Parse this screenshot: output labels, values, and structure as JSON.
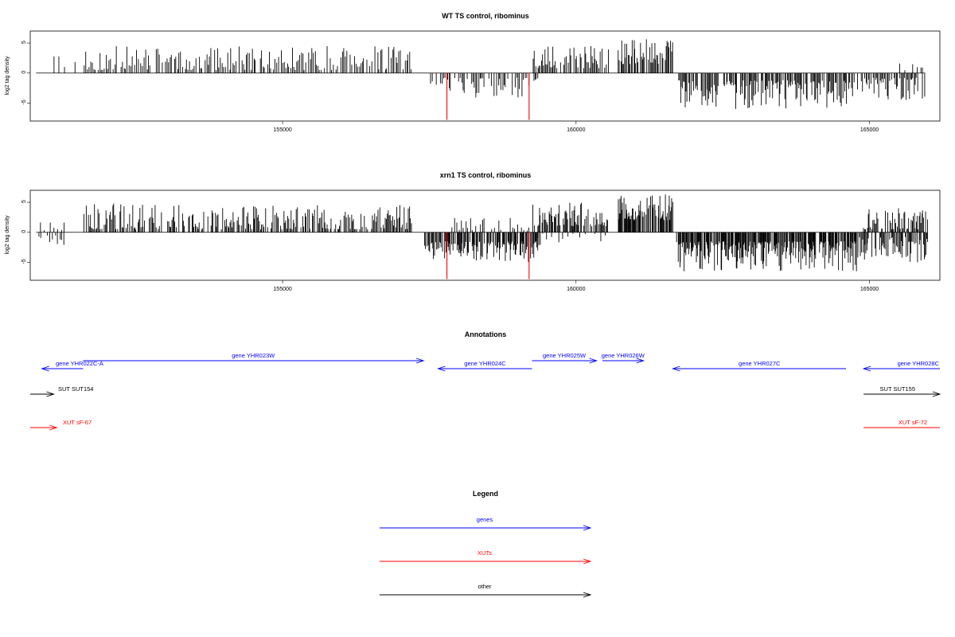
{
  "chart_data": [
    {
      "type": "bar",
      "title": "WT TS control, ribominus",
      "ylabel": "log2 tag density",
      "xlim": [
        150700,
        166200
      ],
      "ylim": [
        -8,
        7
      ],
      "yticks": [
        -5,
        0,
        5
      ],
      "xticks": [
        155000,
        160000,
        165000
      ],
      "xtick_labels": [
        "155000",
        "160000",
        "165000"
      ],
      "colors": {
        "normal": "#000000",
        "highlight": "#ff0000"
      },
      "highlight_bars": [
        {
          "x": 157800,
          "value": -7.8
        },
        {
          "x": 159200,
          "value": -7.8
        }
      ],
      "segments": [
        {
          "start": 150800,
          "end": 151000,
          "strand": "none",
          "min": 0,
          "max": 0
        },
        {
          "start": 151000,
          "end": 151500,
          "strand": "+",
          "min": 1.0,
          "max": 3.2,
          "step": 90,
          "seed": 3
        },
        {
          "start": 151600,
          "end": 157200,
          "strand": "+",
          "min": 0.5,
          "max": 4.5,
          "step": 26,
          "seed": 11
        },
        {
          "start": 157500,
          "end": 159350,
          "strand": "-",
          "min": 0.8,
          "max": 4.2,
          "step": 24,
          "seed": 17
        },
        {
          "start": 159250,
          "end": 160550,
          "strand": "+",
          "min": 0.8,
          "max": 4.8,
          "step": 20,
          "seed": 23
        },
        {
          "start": 160700,
          "end": 161650,
          "strand": "+",
          "min": 1.5,
          "max": 5.8,
          "step": 16,
          "seed": 29
        },
        {
          "start": 161700,
          "end": 164800,
          "strand": "-",
          "min": 1.2,
          "max": 6.0,
          "step": 16,
          "seed": 31
        },
        {
          "start": 164800,
          "end": 165950,
          "strand": "-",
          "min": 0.8,
          "max": 4.8,
          "step": 20,
          "seed": 37
        },
        {
          "start": 165500,
          "end": 165950,
          "strand": "+",
          "min": 0.3,
          "max": 1.6,
          "step": 60,
          "seed": 41
        }
      ]
    },
    {
      "type": "bar",
      "title": "xrn1 TS control, ribominus",
      "ylabel": "log2 tag density",
      "xlim": [
        150700,
        166200
      ],
      "ylim": [
        -8,
        7
      ],
      "yticks": [
        -5,
        0,
        5
      ],
      "xticks": [
        155000,
        160000,
        165000
      ],
      "xtick_labels": [
        "155000",
        "160000",
        "165000"
      ],
      "colors": {
        "normal": "#000000",
        "highlight": "#ff0000"
      },
      "highlight_bars": [
        {
          "x": 157800,
          "value": -7.8
        },
        {
          "x": 159200,
          "value": -7.8
        }
      ],
      "segments": [
        {
          "start": 150800,
          "end": 151300,
          "strand": "-",
          "min": 0.5,
          "max": 2.8,
          "step": 40,
          "seed": 5
        },
        {
          "start": 150800,
          "end": 151300,
          "strand": "+",
          "min": 0.3,
          "max": 1.8,
          "step": 60,
          "seed": 6
        },
        {
          "start": 151600,
          "end": 157200,
          "strand": "+",
          "min": 0.5,
          "max": 4.8,
          "step": 18,
          "seed": 13
        },
        {
          "start": 157400,
          "end": 159400,
          "strand": "-",
          "min": 1.5,
          "max": 5.0,
          "step": 12,
          "seed": 19
        },
        {
          "start": 157800,
          "end": 159200,
          "strand": "+",
          "min": 0.3,
          "max": 2.5,
          "step": 40,
          "seed": 20
        },
        {
          "start": 159250,
          "end": 160550,
          "strand": "+",
          "min": 1.0,
          "max": 5.0,
          "step": 14,
          "seed": 25
        },
        {
          "start": 159250,
          "end": 160550,
          "strand": "-",
          "min": 0.2,
          "max": 1.8,
          "step": 90,
          "seed": 26
        },
        {
          "start": 160700,
          "end": 161650,
          "strand": "+",
          "min": 2.0,
          "max": 6.5,
          "step": 10,
          "seed": 32
        },
        {
          "start": 161700,
          "end": 164800,
          "strand": "-",
          "min": 1.5,
          "max": 6.5,
          "step": 10,
          "seed": 34
        },
        {
          "start": 164800,
          "end": 166000,
          "strand": "-",
          "min": 0.8,
          "max": 5.0,
          "step": 14,
          "seed": 38
        },
        {
          "start": 164900,
          "end": 166000,
          "strand": "+",
          "min": 0.5,
          "max": 4.0,
          "step": 16,
          "seed": 43
        }
      ]
    }
  ],
  "annotations": {
    "title": "Annotations",
    "xlim": [
      150700,
      166200
    ],
    "features": [
      {
        "label": "gene YHR022C-A",
        "x_start": 150900,
        "x_end": 151600,
        "direction": "left",
        "type": "gene",
        "row": 2,
        "label_side": "left"
      },
      {
        "label": "gene YHR023W",
        "x_start": 151600,
        "x_end": 157400,
        "direction": "right",
        "type": "gene",
        "row": 1,
        "label_side": "center"
      },
      {
        "label": "gene YHR024C",
        "x_start": 157650,
        "x_end": 159250,
        "direction": "left",
        "type": "gene",
        "row": 2,
        "label_side": "center"
      },
      {
        "label": "gene YHR025W",
        "x_start": 159250,
        "x_end": 160350,
        "direction": "right",
        "type": "gene",
        "row": 1,
        "label_side": "center"
      },
      {
        "label": "gene YHR026W",
        "x_start": 160450,
        "x_end": 161150,
        "direction": "right",
        "type": "gene",
        "row": 1,
        "label_side": "center"
      },
      {
        "label": "gene YHR027C",
        "x_start": 161650,
        "x_end": 164600,
        "direction": "left",
        "type": "gene",
        "row": 2,
        "label_side": "center"
      },
      {
        "label": "gene YHR028C",
        "x_start": 164900,
        "x_end": 166200,
        "direction": "left",
        "type": "gene",
        "row": 2,
        "label_side": "right"
      },
      {
        "label": "SUT SUT154",
        "x_start": 150700,
        "x_end": 151100,
        "direction": "right",
        "type": "other",
        "row": 3,
        "label_side": "center"
      },
      {
        "label": "SUT SUT155",
        "x_start": 164900,
        "x_end": 166200,
        "direction": "right",
        "type": "other",
        "row": 3,
        "label_side": "right"
      },
      {
        "label": "XUT sF-67",
        "x_start": 150700,
        "x_end": 151150,
        "direction": "right",
        "type": "xut",
        "row": 4,
        "label_side": "center"
      },
      {
        "label": "XUT sF-72",
        "x_start": 164900,
        "x_end": 166200,
        "direction": "none",
        "type": "xut",
        "row": 4,
        "label_side": "right"
      }
    ]
  },
  "legend": {
    "title": "Legend",
    "items": [
      {
        "label": "genes",
        "type": "gene",
        "color": "#0000ff"
      },
      {
        "label": "XUTs",
        "type": "xut",
        "color": "#ff0000"
      },
      {
        "label": "other",
        "type": "other",
        "color": "#000000"
      }
    ]
  },
  "colors": {
    "gene": "#0000ff",
    "xut": "#ff0000",
    "other": "#000000"
  }
}
